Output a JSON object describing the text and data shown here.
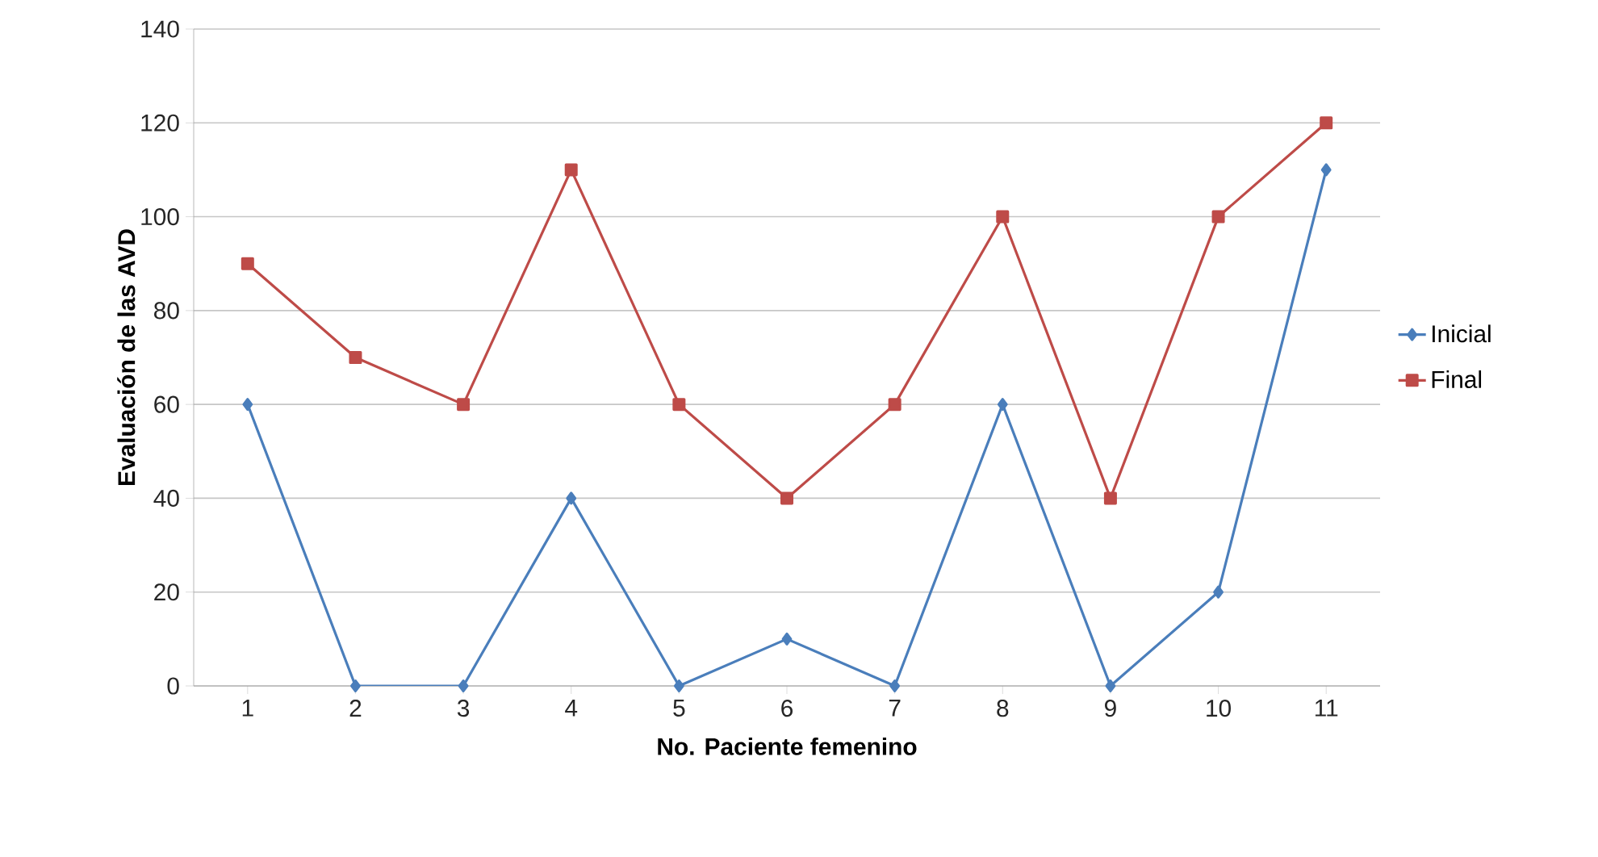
{
  "chart_data": {
    "type": "line",
    "xlabel": "No. Paciente femenino",
    "ylabel": "Evaluación de las AVD",
    "categories": [
      "1",
      "2",
      "3",
      "4",
      "5",
      "6",
      "7",
      "8",
      "9",
      "10",
      "11"
    ],
    "series": [
      {
        "name": "Inicial",
        "color": "#4a7ebb",
        "marker": "diamond",
        "values": [
          60,
          0,
          0,
          40,
          0,
          10,
          0,
          60,
          0,
          20,
          110
        ]
      },
      {
        "name": "Final",
        "color": "#be4b48",
        "marker": "square",
        "values": [
          90,
          70,
          60,
          110,
          60,
          40,
          60,
          100,
          40,
          100,
          120
        ]
      }
    ],
    "ylim": [
      0,
      140
    ],
    "yticks": [
      0,
      20,
      40,
      60,
      80,
      100,
      120,
      140
    ],
    "grid": "y",
    "legend": "right"
  }
}
